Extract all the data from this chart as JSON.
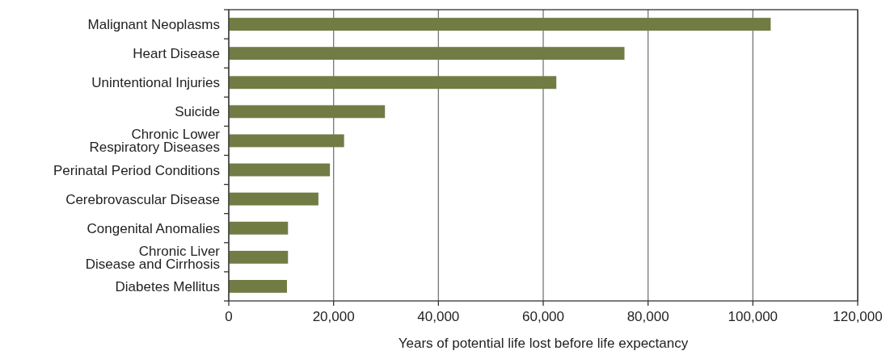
{
  "chart_data": {
    "type": "bar",
    "orientation": "horizontal",
    "categories": [
      "Malignant Neoplasms",
      "Heart Disease",
      "Unintentional Injuries",
      "Suicide",
      "Chronic Lower\nRespiratory Diseases",
      "Perinatal Period Conditions",
      "Cerebrovascular Disease",
      "Congenital Anomalies",
      "Chronic Liver\nDisease and Cirrhosis",
      "Diabetes Mellitus"
    ],
    "values": [
      103400,
      75500,
      62500,
      29800,
      22000,
      19300,
      17100,
      11300,
      11300,
      11100
    ],
    "color": "#717c45",
    "xlabel": "Years of potential life lost before life expectancy",
    "xlim": [
      0,
      120000
    ],
    "xticks": [
      {
        "value": 0,
        "label": "0"
      },
      {
        "value": 20000,
        "label": "20,000"
      },
      {
        "value": 40000,
        "label": "40,000"
      },
      {
        "value": 60000,
        "label": "60,000"
      },
      {
        "value": 80000,
        "label": "80,000"
      },
      {
        "value": 100000,
        "label": "100,000"
      },
      {
        "value": 120000,
        "label": "120,000"
      }
    ],
    "grid": "x"
  }
}
